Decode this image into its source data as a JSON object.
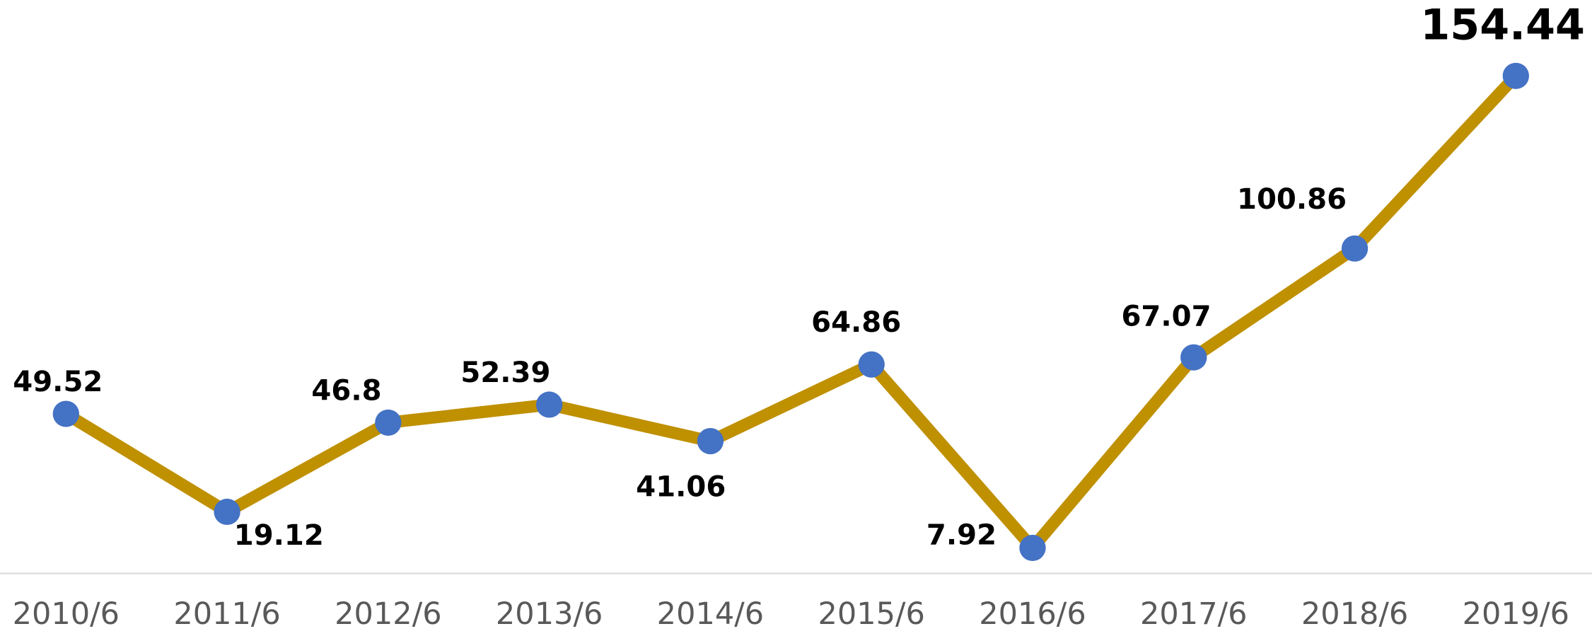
{
  "chart_data": {
    "type": "line",
    "categories": [
      "2010/6",
      "2011/6",
      "2012/6",
      "2013/6",
      "2014/6",
      "2015/6",
      "2016/6",
      "2017/6",
      "2018/6",
      "2019/6"
    ],
    "series": [
      {
        "color": "#bf9000",
        "marker_color": "#4472c4",
        "values": [
          49.52,
          19.12,
          46.8,
          52.39,
          41.06,
          64.86,
          7.92,
          67.07,
          100.86,
          154.44
        ]
      }
    ],
    "ylim": [
      0,
      178
    ]
  }
}
